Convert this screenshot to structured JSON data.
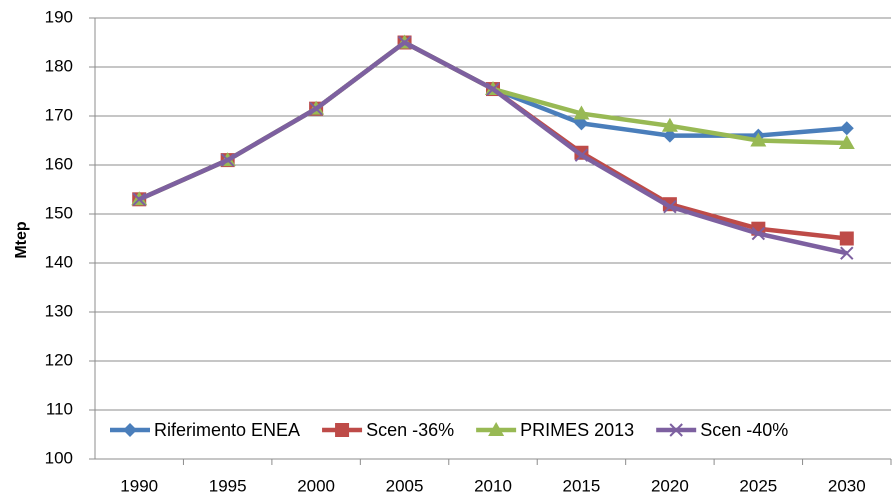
{
  "chart_data": {
    "type": "line",
    "y_label": "Mtep",
    "categories": [
      "1990",
      "1995",
      "2000",
      "2005",
      "2010",
      "2015",
      "2020",
      "2025",
      "2030"
    ],
    "series": [
      {
        "name": "Riferimento ENEA",
        "color": "#4a7ebb",
        "marker": "diamond",
        "values": [
          153,
          161,
          171.5,
          185,
          175.5,
          168.5,
          166,
          166,
          167.5
        ]
      },
      {
        "name": "Scen -36%",
        "color": "#be4b48",
        "marker": "square",
        "values": [
          153,
          161,
          171.5,
          185,
          175.5,
          162.5,
          152,
          147,
          145
        ]
      },
      {
        "name": "PRIMES 2013",
        "color": "#98b954",
        "marker": "triangle",
        "values": [
          153,
          161,
          171.5,
          185,
          175.5,
          170.5,
          168,
          165,
          164.5
        ]
      },
      {
        "name": "Scen -40%",
        "color": "#7d60a0",
        "marker": "x",
        "values": [
          153,
          161,
          171.5,
          185,
          175.5,
          162,
          151.5,
          146,
          142
        ]
      }
    ],
    "ylim": [
      100,
      190
    ],
    "yticks": [
      100,
      110,
      120,
      130,
      140,
      150,
      160,
      170,
      180,
      190
    ],
    "grid": true,
    "legend": "bottom"
  }
}
